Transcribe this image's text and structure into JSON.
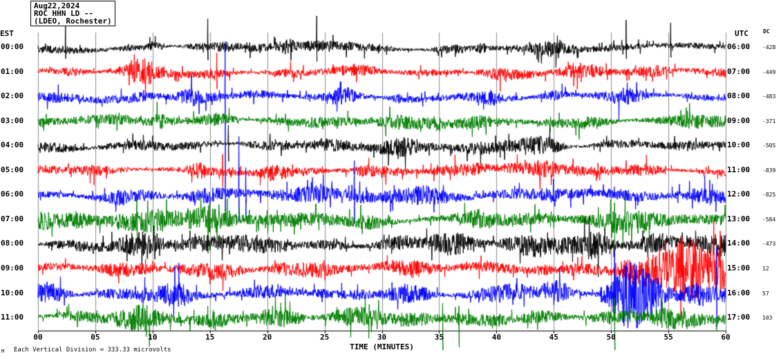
{
  "title": {
    "date": "Aug22,2024",
    "station": "ROC HHN LD --",
    "location": "(LDEO, Rochester)"
  },
  "axis": {
    "left_tz": "EST",
    "right_tz": "UTC",
    "dc_header": "DC",
    "x_ticks": [
      "00",
      "05",
      "10",
      "15",
      "20",
      "25",
      "30",
      "35",
      "40",
      "45",
      "50",
      "55",
      "60"
    ],
    "x_title": "TIME (MINUTES)",
    "footer_note": "Each Vertical Division =  333.33 microvolts",
    "corner_mark": "M"
  },
  "chart_data": {
    "type": "line",
    "title": "ROC HHN LD -- (LDEO, Rochester) Aug22,2024",
    "xlabel": "TIME (MINUTES)",
    "x_range_minutes": [
      0,
      60
    ],
    "minutes_per_row": 60,
    "vertical_division_microvolts": 333.33,
    "trace_colors_cycle": [
      "#000000",
      "#ff0000",
      "#0000ff",
      "#007f00"
    ],
    "description": "12 hourly helicorder rows of continuous seismic noise; amp is typical half-amplitude in px, spikes are [minute, up_px, down_px], bursts are [start_min, end_min, gain]",
    "rows": [
      {
        "est": "00:00",
        "utc": "06:00",
        "dc": "-428",
        "color": "#000000",
        "amp": 6.5,
        "seed": 11,
        "bursts": [],
        "spikes": [
          [
            2.4,
            40,
            16
          ],
          [
            14.8,
            42,
            18
          ],
          [
            24.3,
            46,
            20
          ],
          [
            51.3,
            40,
            16
          ],
          [
            55.2,
            36,
            14
          ]
        ]
      },
      {
        "est": "01:00",
        "utc": "07:00",
        "dc": "-449",
        "color": "#ff0000",
        "amp": 7,
        "seed": 22,
        "bursts": [
          [
            8,
            10,
            1.6
          ],
          [
            38,
            41,
            1.7
          ]
        ],
        "spikes": [
          [
            15.6,
            28,
            24
          ]
        ]
      },
      {
        "est": "02:00",
        "utc": "08:00",
        "dc": "-483",
        "color": "#0000ff",
        "amp": 7,
        "seed": 33,
        "bursts": [],
        "spikes": [
          [
            16.3,
            80,
            165
          ]
        ]
      },
      {
        "est": "03:00",
        "utc": "09:00",
        "dc": "-371",
        "color": "#007f00",
        "amp": 8.5,
        "seed": 44,
        "bursts": [
          [
            9,
            12,
            1.6
          ]
        ],
        "spikes": []
      },
      {
        "est": "04:00",
        "utc": "10:00",
        "dc": "-505",
        "color": "#000000",
        "amp": 7.5,
        "seed": 55,
        "bursts": [],
        "spikes": [
          [
            16.6,
            30,
            22
          ]
        ]
      },
      {
        "est": "05:00",
        "utc": "11:00",
        "dc": "-839",
        "color": "#ff0000",
        "amp": 7.5,
        "seed": 66,
        "bursts": [],
        "spikes": [
          [
            16.1,
            24,
            26
          ]
        ]
      },
      {
        "est": "06:00",
        "utc": "12:00",
        "dc": "-825",
        "color": "#0000ff",
        "amp": 8,
        "seed": 77,
        "bursts": [],
        "spikes": [
          [
            17.5,
            85,
            38
          ],
          [
            18.1,
            40,
            30
          ],
          [
            27.6,
            50,
            40
          ]
        ]
      },
      {
        "est": "07:00",
        "utc": "13:00",
        "dc": "-584",
        "color": "#007f00",
        "amp": 11,
        "seed": 88,
        "bursts": [
          [
            13,
            17,
            1.5
          ]
        ],
        "spikes": [
          [
            50.3,
            25,
            45
          ]
        ]
      },
      {
        "est": "08:00",
        "utc": "14:00",
        "dc": "-473",
        "color": "#000000",
        "amp": 11,
        "seed": 99,
        "bursts": [
          [
            48,
            60,
            1.5
          ]
        ],
        "spikes": []
      },
      {
        "est": "09:00",
        "utc": "15:00",
        "dc": "12",
        "color": "#ff0000",
        "amp": 10,
        "seed": 110,
        "bursts": [
          [
            51,
            60,
            2.6
          ]
        ],
        "spikes": [
          [
            59.5,
            55,
            35
          ]
        ]
      },
      {
        "est": "10:00",
        "utc": "16:00",
        "dc": "57",
        "color": "#0000ff",
        "amp": 11,
        "seed": 121,
        "bursts": [
          [
            49,
            58,
            2.3
          ]
        ],
        "spikes": [
          [
            50.3,
            62,
            100
          ],
          [
            59.2,
            68,
            48
          ]
        ]
      },
      {
        "est": "11:00",
        "utc": "17:00",
        "dc": "103",
        "color": "#007f00",
        "amp": 11,
        "seed": 132,
        "bursts": [
          [
            15,
            20,
            1.4
          ]
        ],
        "spikes": [
          [
            35.3,
            22,
            52
          ],
          [
            36.7,
            18,
            42
          ],
          [
            50.3,
            30,
            70
          ]
        ]
      }
    ]
  }
}
